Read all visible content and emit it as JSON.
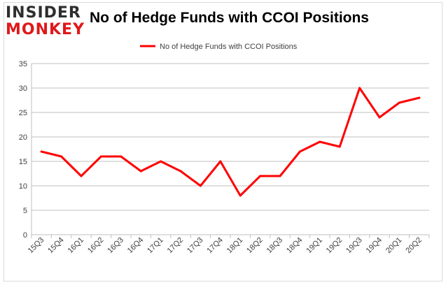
{
  "logo": {
    "line1": "INSIDER",
    "line2": "MONKEY"
  },
  "title": "No of Hedge Funds with CCOI Positions",
  "colors": {
    "series": "#ff0000",
    "grid": "#bfbfbf",
    "text": "#404040",
    "logo_dark": "#2e2e2e",
    "logo_red": "#e0181b"
  },
  "chart_data": {
    "type": "line",
    "title": "No of Hedge Funds with CCOI Positions",
    "xlabel": "",
    "ylabel": "",
    "ylim": [
      0,
      35
    ],
    "yticks": [
      0,
      5,
      10,
      15,
      20,
      25,
      30,
      35
    ],
    "grid": true,
    "legend": "top-center",
    "categories": [
      "15Q3",
      "15Q4",
      "16Q1",
      "16Q2",
      "16Q3",
      "16Q4",
      "17Q1",
      "17Q2",
      "17Q3",
      "17Q4",
      "18Q1",
      "18Q2",
      "18Q3",
      "18Q4",
      "19Q1",
      "19Q2",
      "19Q3",
      "19Q4",
      "20Q1",
      "20Q2"
    ],
    "series": [
      {
        "name": "No of Hedge Funds with CCOI Positions",
        "values": [
          17,
          16,
          12,
          16,
          16,
          13,
          15,
          13,
          10,
          15,
          8,
          12,
          12,
          17,
          19,
          18,
          30,
          24,
          27,
          28
        ]
      }
    ]
  }
}
